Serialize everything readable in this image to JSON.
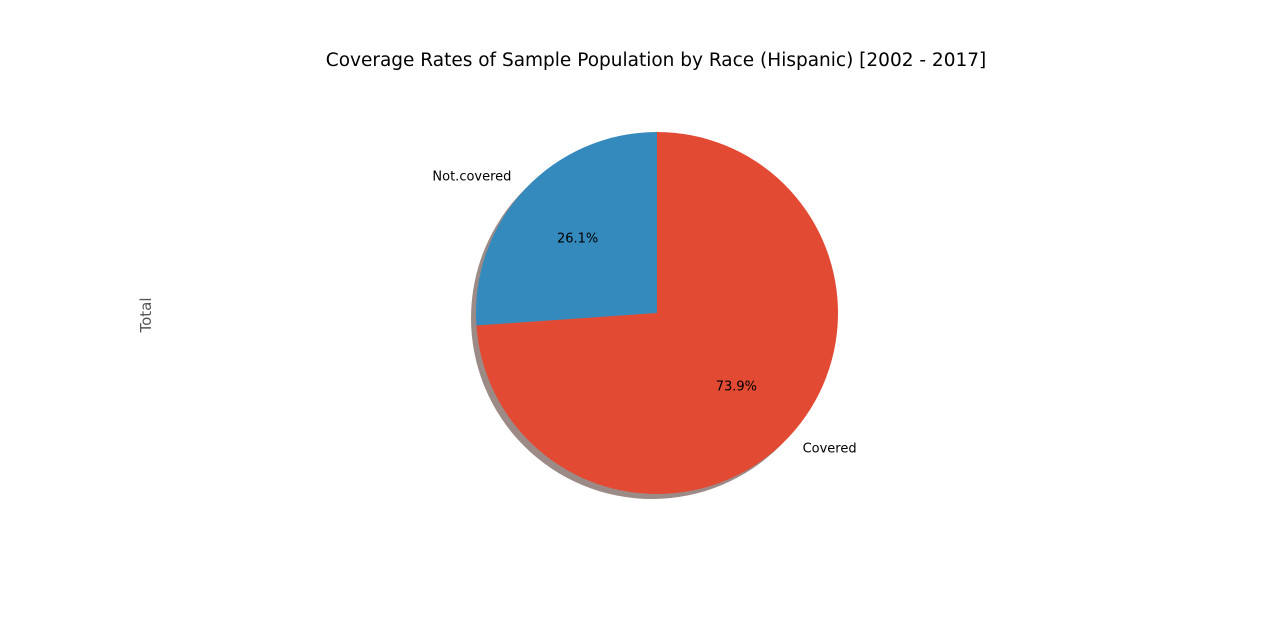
{
  "chart_data": {
    "type": "pie",
    "title": "Coverage Rates of Sample Population by Race (Hispanic) [2002 - 2017]",
    "ylabel": "Total",
    "start_angle_deg": 90,
    "direction": "counterclockwise",
    "shadow": true,
    "slices": [
      {
        "label": "Not.covered",
        "value": 26.1,
        "pct_label": "26.1%",
        "color": "#348ABD"
      },
      {
        "label": "Covered",
        "value": 73.9,
        "pct_label": "73.9%",
        "color": "#E24A33"
      }
    ],
    "shadow_color": "#9C8A86"
  }
}
